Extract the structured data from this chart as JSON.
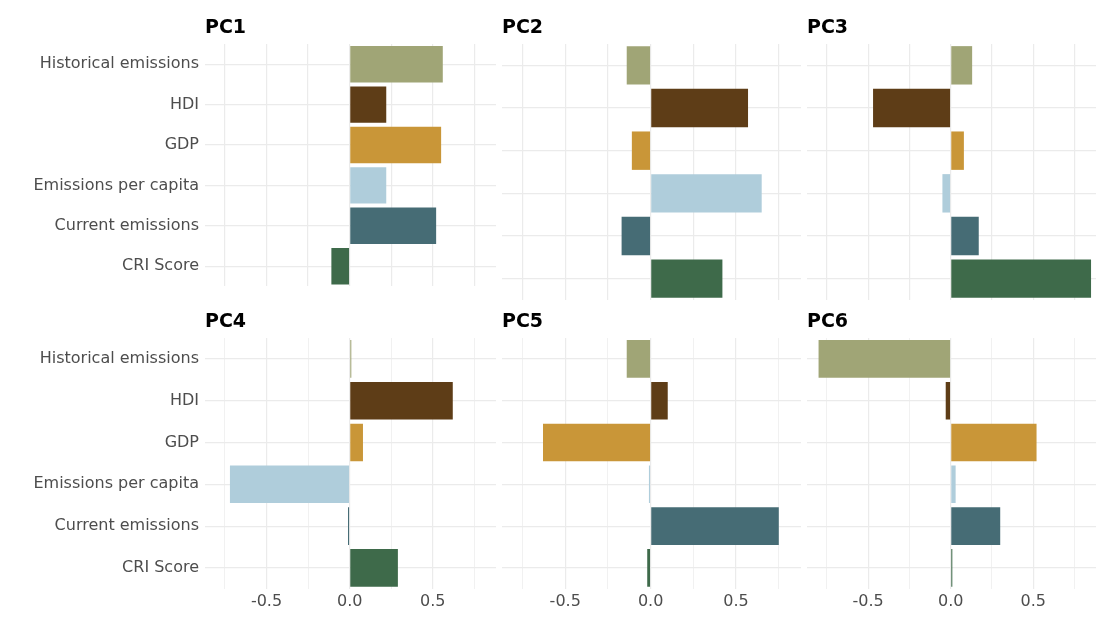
{
  "chart_data": [
    {
      "type": "bar",
      "orientation": "horizontal",
      "title": "PC1",
      "categories": [
        "Historical emissions",
        "HDI",
        "GDP",
        "Emissions per capita",
        "Current emissions",
        "CRI Score"
      ],
      "values": [
        0.56,
        0.22,
        0.55,
        0.22,
        0.52,
        -0.11
      ],
      "colors": [
        "#a0a576",
        "#5e3d17",
        "#c99638",
        "#afcddb",
        "#466c75",
        "#3e6a4a"
      ],
      "xlim": [
        -0.87,
        0.88
      ],
      "xticks": [
        -0.75,
        -0.5,
        -0.25,
        0,
        0.25,
        0.5,
        0.75
      ],
      "grid": true,
      "tick_labels": "y"
    },
    {
      "type": "bar",
      "orientation": "horizontal",
      "title": "PC2",
      "categories": [
        null,
        null,
        null,
        null,
        null,
        null
      ],
      "values": [
        -0.14,
        0.57,
        -0.11,
        0.65,
        -0.17,
        0.42
      ],
      "colors": [
        "#a0a576",
        "#5e3d17",
        "#c99638",
        "#afcddb",
        "#466c75",
        "#3e6a4a"
      ],
      "xlim": [
        -0.87,
        0.88
      ],
      "xticks": [
        -0.75,
        -0.5,
        -0.25,
        0,
        0.25,
        0.5,
        0.75
      ],
      "grid": true,
      "tick_labels": false
    },
    {
      "type": "bar",
      "orientation": "horizontal",
      "title": "PC3",
      "categories": [
        null,
        null,
        null,
        null,
        null,
        null
      ],
      "values": [
        0.13,
        -0.47,
        0.08,
        -0.05,
        0.17,
        0.85
      ],
      "colors": [
        "#a0a576",
        "#5e3d17",
        "#c99638",
        "#afcddb",
        "#466c75",
        "#3e6a4a"
      ],
      "xlim": [
        -0.87,
        0.88
      ],
      "xticks": [
        -0.75,
        -0.5,
        -0.25,
        0,
        0.25,
        0.5,
        0.75
      ],
      "grid": true,
      "tick_labels": false
    },
    {
      "type": "bar",
      "orientation": "horizontal",
      "title": "PC4",
      "categories": [
        "Historical emissions",
        "HDI",
        "GDP",
        "Emissions per capita",
        "Current emissions",
        "CRI Score"
      ],
      "values": [
        0.01,
        0.62,
        0.08,
        -0.72,
        -0.01,
        0.29
      ],
      "colors": [
        "#a0a576",
        "#5e3d17",
        "#c99638",
        "#afcddb",
        "#466c75",
        "#3e6a4a"
      ],
      "xlim": [
        -0.87,
        0.88
      ],
      "xticks": [
        {
          "value": -0.75,
          "label": null
        },
        {
          "value": -0.5,
          "label": "-0.5"
        },
        {
          "value": -0.25,
          "label": null
        },
        {
          "value": 0,
          "label": "0.0"
        },
        {
          "value": 0.25,
          "label": null
        },
        {
          "value": 0.5,
          "label": "0.5"
        },
        {
          "value": 0.75,
          "label": null
        }
      ],
      "grid": true
    },
    {
      "type": "bar",
      "orientation": "horizontal",
      "title": "PC5",
      "categories": [
        null,
        null,
        null,
        null,
        null,
        null
      ],
      "values": [
        -0.14,
        0.1,
        -0.63,
        -0.01,
        0.75,
        -0.02
      ],
      "colors": [
        "#a0a576",
        "#5e3d17",
        "#c99638",
        "#afcddb",
        "#466c75",
        "#3e6a4a"
      ],
      "xlim": [
        -0.87,
        0.88
      ],
      "xticks": [
        {
          "value": -0.75,
          "label": null
        },
        {
          "value": -0.5,
          "label": "-0.5"
        },
        {
          "value": -0.25,
          "label": null
        },
        {
          "value": 0,
          "label": "0.0"
        },
        {
          "value": 0.25,
          "label": null
        },
        {
          "value": 0.5,
          "label": "0.5"
        },
        {
          "value": 0.75,
          "label": null
        }
      ],
      "grid": true,
      "tick_labels": "x"
    },
    {
      "type": "bar",
      "orientation": "horizontal",
      "title": "PC6",
      "categories": [
        null,
        null,
        null,
        null,
        null,
        null
      ],
      "values": [
        -0.8,
        -0.03,
        0.52,
        0.03,
        0.3,
        0.01
      ],
      "colors": [
        "#a0a576",
        "#5e3d17",
        "#c99638",
        "#afcddb",
        "#466c75",
        "#3e6a4a"
      ],
      "xlim": [
        -0.87,
        0.88
      ],
      "xticks": [
        {
          "value": -0.75,
          "label": null
        },
        {
          "value": -0.5,
          "label": "-0.5"
        },
        {
          "value": -0.25,
          "label": null
        },
        {
          "value": 0,
          "label": "0.0"
        },
        {
          "value": 0.25,
          "label": null
        },
        {
          "value": 0.5,
          "label": "0.5"
        },
        {
          "value": 0.75,
          "label": null
        }
      ],
      "grid": true,
      "tick_labels": "x"
    }
  ]
}
